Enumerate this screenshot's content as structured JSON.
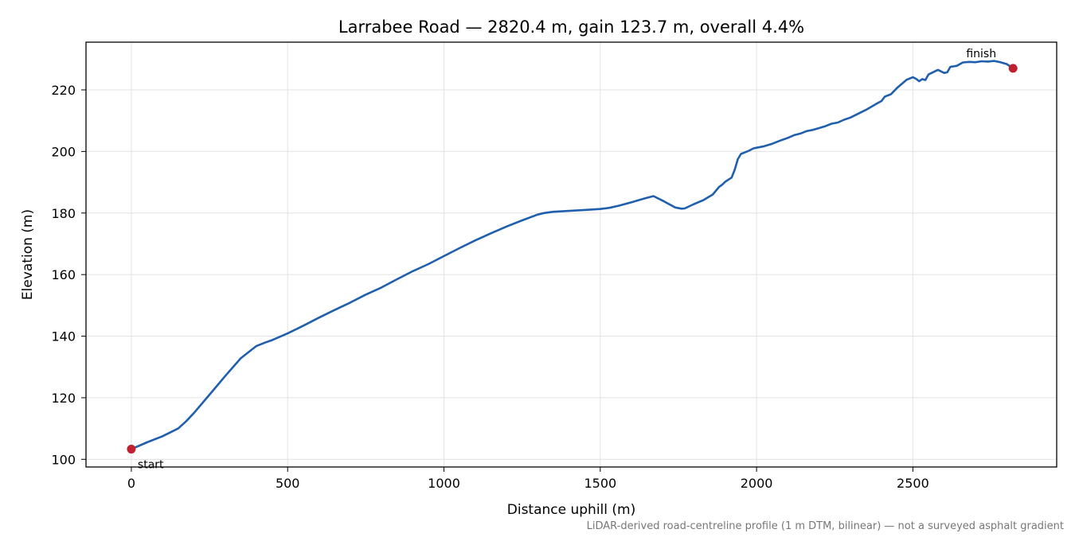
{
  "chart_data": {
    "type": "line",
    "title": "Larrabee Road — 2820.4 m, gain 123.7 m, overall 4.4%",
    "xlabel": "Distance uphill (m)",
    "ylabel": "Elevation (m)",
    "xlim": [
      -145,
      2960
    ],
    "ylim": [
      97.5,
      235.5
    ],
    "xticks": [
      0,
      500,
      1000,
      1500,
      2000,
      2500
    ],
    "yticks": [
      100,
      120,
      140,
      160,
      180,
      200,
      220
    ],
    "grid": true,
    "line_color": "#1f5fad",
    "marker_color": "#c0202f",
    "footnote": "LiDAR-derived road-centreline profile (1 m DTM, bilinear) — not a surveyed asphalt gradient",
    "annotations": [
      {
        "label": "start",
        "x": 0,
        "y": 103.3
      },
      {
        "label": "finish",
        "x": 2820.4,
        "y": 227.0
      }
    ],
    "series": [
      {
        "x": [
          0,
          50,
          100,
          150,
          175,
          200,
          250,
          300,
          350,
          400,
          430,
          450,
          500,
          550,
          600,
          650,
          700,
          750,
          800,
          850,
          900,
          950,
          1000,
          1050,
          1100,
          1150,
          1200,
          1250,
          1300,
          1320,
          1350,
          1400,
          1450,
          1500,
          1530,
          1560,
          1600,
          1640,
          1670,
          1700,
          1740,
          1760,
          1770,
          1800,
          1830,
          1860,
          1880,
          1890,
          1900,
          1920,
          1930,
          1940,
          1950,
          1960,
          1975,
          1990,
          2000,
          2020,
          2050,
          2080,
          2100,
          2120,
          2140,
          2160,
          2180,
          2200,
          2220,
          2240,
          2260,
          2280,
          2300,
          2320,
          2350,
          2380,
          2400,
          2410,
          2430,
          2450,
          2480,
          2500,
          2510,
          2520,
          2530,
          2540,
          2550,
          2560,
          2580,
          2600,
          2610,
          2620,
          2640,
          2660,
          2680,
          2700,
          2720,
          2740,
          2760,
          2780,
          2800,
          2820.4
        ],
        "y": [
          103.3,
          105.5,
          107.5,
          110.0,
          112.3,
          115.0,
          121.0,
          127.0,
          132.8,
          136.8,
          138.0,
          138.7,
          140.9,
          143.4,
          146.0,
          148.5,
          150.9,
          153.5,
          155.8,
          158.5,
          161.1,
          163.4,
          166.0,
          168.6,
          171.1,
          173.4,
          175.6,
          177.6,
          179.5,
          180.0,
          180.4,
          180.7,
          181.0,
          181.3,
          181.7,
          182.4,
          183.5,
          184.7,
          185.5,
          184.0,
          181.8,
          181.4,
          181.5,
          182.9,
          184.2,
          186.0,
          188.5,
          189.2,
          190.2,
          191.5,
          194.0,
          197.5,
          199.2,
          199.6,
          200.2,
          201.0,
          201.2,
          201.6,
          202.5,
          203.7,
          204.4,
          205.3,
          205.8,
          206.6,
          207.0,
          207.6,
          208.2,
          209.0,
          209.4,
          210.3,
          211.0,
          212.0,
          213.5,
          215.3,
          216.4,
          217.8,
          218.6,
          220.7,
          223.3,
          224.1,
          223.6,
          222.8,
          223.5,
          223.2,
          225.0,
          225.5,
          226.5,
          225.5,
          225.7,
          227.5,
          227.8,
          228.9,
          229.1,
          229.0,
          229.3,
          229.2,
          229.4,
          229.0,
          228.4,
          227.0
        ]
      }
    ]
  }
}
